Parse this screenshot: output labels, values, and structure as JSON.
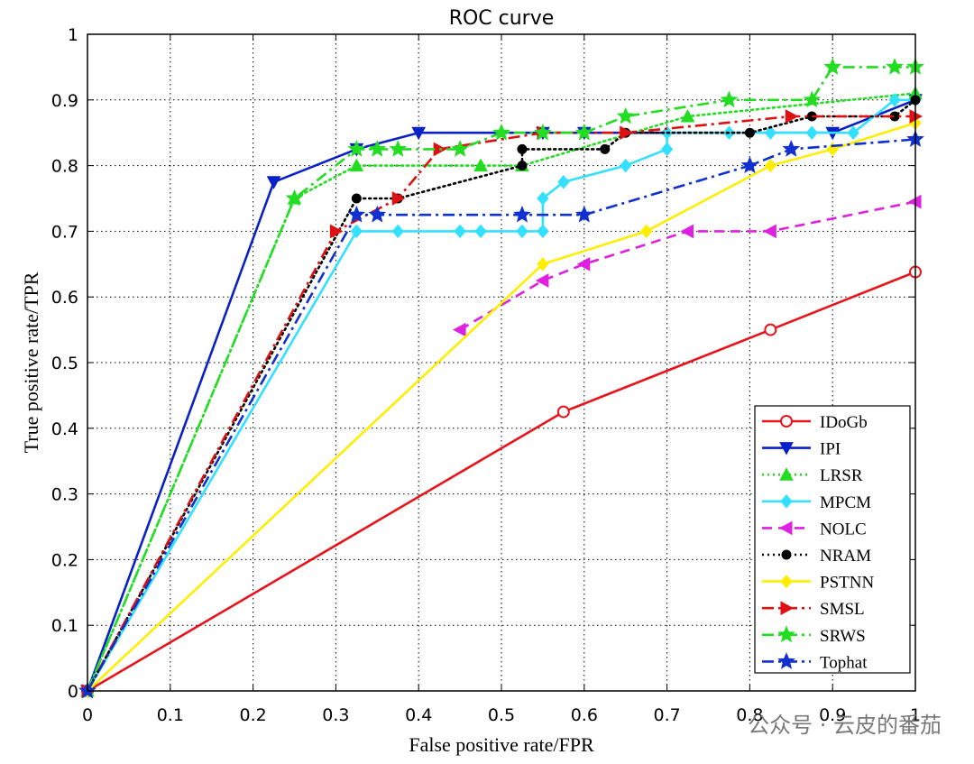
{
  "watermark": "公众号 · 云皮的番茄",
  "chart_data": {
    "type": "line",
    "title": "ROC curve",
    "xlabel": "False positive rate/FPR",
    "ylabel": "True positive rate/TPR",
    "xlim": [
      0,
      1
    ],
    "ylim": [
      0,
      1
    ],
    "xticks": [
      "0",
      "0.1",
      "0.2",
      "0.3",
      "0.4",
      "0.5",
      "0.6",
      "0.7",
      "0.8",
      "0.9",
      "1"
    ],
    "yticks": [
      "0",
      "0.1",
      "0.2",
      "0.3",
      "0.4",
      "0.5",
      "0.6",
      "0.7",
      "0.8",
      "0.9",
      "1"
    ],
    "grid": true,
    "legend_position": "bottom-right",
    "series": [
      {
        "name": "IDoGb",
        "color": "#e8141c",
        "dash": "solid",
        "marker": "circle-open",
        "x": [
          0,
          0.575,
          0.825,
          1.0
        ],
        "y": [
          0,
          0.425,
          0.55,
          0.638
        ]
      },
      {
        "name": "IPI",
        "color": "#0a20c8",
        "dash": "solid",
        "marker": "triangle-down",
        "x": [
          0,
          0.225,
          0.325,
          0.4,
          0.55,
          0.6,
          0.9,
          1.0
        ],
        "y": [
          0,
          0.775,
          0.825,
          0.85,
          0.85,
          0.85,
          0.85,
          0.9
        ]
      },
      {
        "name": "LRSR",
        "color": "#22dd22",
        "dash": "dotted",
        "marker": "triangle-up",
        "x": [
          0,
          0.25,
          0.325,
          0.475,
          0.525,
          0.725,
          1.0
        ],
        "y": [
          0,
          0.75,
          0.8,
          0.8,
          0.8,
          0.875,
          0.91
        ]
      },
      {
        "name": "MPCM",
        "color": "#33e0ff",
        "dash": "solid",
        "marker": "diamond",
        "x": [
          0,
          0.325,
          0.375,
          0.45,
          0.475,
          0.525,
          0.55,
          0.55,
          0.575,
          0.65,
          0.7,
          0.7,
          0.775,
          0.825,
          0.875,
          0.925,
          0.975,
          1.0
        ],
        "y": [
          0,
          0.7,
          0.7,
          0.7,
          0.7,
          0.7,
          0.7,
          0.75,
          0.775,
          0.8,
          0.825,
          0.85,
          0.85,
          0.85,
          0.85,
          0.85,
          0.9,
          0.9
        ]
      },
      {
        "name": "NOLC",
        "color": "#e020e0",
        "dash": "dashed",
        "marker": "triangle-left",
        "x": [
          0.45,
          0.55,
          0.6,
          0.725,
          0.825,
          1.0
        ],
        "y": [
          0.55,
          0.625,
          0.65,
          0.7,
          0.7,
          0.745
        ]
      },
      {
        "name": "NRAM",
        "color": "#000000",
        "dash": "dotted",
        "marker": "dot",
        "x": [
          0,
          0.325,
          0.375,
          0.525,
          0.525,
          0.625,
          0.65,
          0.8,
          0.875,
          0.975,
          1.0
        ],
        "y": [
          0,
          0.75,
          0.75,
          0.8,
          0.825,
          0.825,
          0.85,
          0.85,
          0.875,
          0.875,
          0.9
        ]
      },
      {
        "name": "PSTNN",
        "color": "#ffee00",
        "dash": "solid",
        "marker": "diamond",
        "x": [
          0,
          0.55,
          0.675,
          0.825,
          0.9,
          1.0
        ],
        "y": [
          0,
          0.65,
          0.7,
          0.8,
          0.825,
          0.865
        ]
      },
      {
        "name": "SMSL",
        "color": "#dd1111",
        "dash": "dashdot",
        "marker": "triangle-right",
        "x": [
          0,
          0.3,
          0.375,
          0.425,
          0.55,
          0.65,
          0.85,
          1.0
        ],
        "y": [
          0,
          0.7,
          0.75,
          0.825,
          0.85,
          0.85,
          0.875,
          0.875
        ]
      },
      {
        "name": "SRWS",
        "color": "#22dd22",
        "dash": "dashdot",
        "marker": "star",
        "x": [
          0,
          0.25,
          0.325,
          0.35,
          0.375,
          0.45,
          0.5,
          0.55,
          0.6,
          0.65,
          0.775,
          0.875,
          0.9,
          0.975,
          1.0
        ],
        "y": [
          0,
          0.75,
          0.825,
          0.825,
          0.825,
          0.825,
          0.85,
          0.85,
          0.85,
          0.875,
          0.9,
          0.9,
          0.95,
          0.95,
          0.95
        ]
      },
      {
        "name": "Tophat",
        "color": "#1030d0",
        "dash": "dashdot",
        "marker": "star",
        "x": [
          0,
          0.325,
          0.35,
          0.525,
          0.6,
          0.8,
          0.85,
          1.0
        ],
        "y": [
          0,
          0.725,
          0.725,
          0.725,
          0.725,
          0.8,
          0.825,
          0.84
        ]
      }
    ]
  }
}
